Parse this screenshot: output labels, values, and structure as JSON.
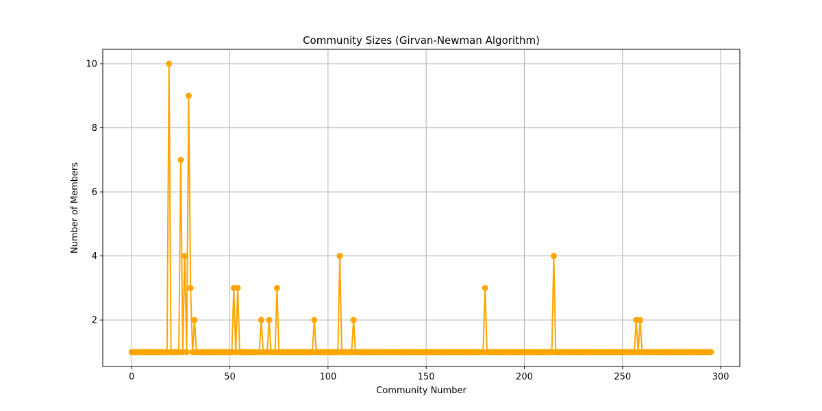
{
  "chart_data": {
    "type": "line",
    "title": "Community Sizes (Girvan-Newman Algorithm)",
    "xlabel": "Community Number",
    "ylabel": "Number of Members",
    "xlim": [
      -14.75,
      309.75
    ],
    "ylim": [
      0.55,
      10.45
    ],
    "x_ticks": [
      0,
      50,
      100,
      150,
      200,
      250,
      300
    ],
    "y_ticks": [
      2,
      4,
      6,
      8,
      10
    ],
    "grid": true,
    "legend": "none",
    "series": [
      {
        "color": "#ffa500",
        "marker": "circle",
        "x_start": 0,
        "x_step": 1,
        "values": [
          1,
          1,
          1,
          1,
          1,
          1,
          1,
          1,
          1,
          1,
          1,
          1,
          1,
          1,
          1,
          1,
          1,
          1,
          1,
          10,
          1,
          1,
          1,
          1,
          1,
          7,
          1,
          4,
          1,
          9,
          3,
          1,
          2,
          1,
          1,
          1,
          1,
          1,
          1,
          1,
          1,
          1,
          1,
          1,
          1,
          1,
          1,
          1,
          1,
          1,
          1,
          1,
          3,
          1,
          3,
          1,
          1,
          1,
          1,
          1,
          1,
          1,
          1,
          1,
          1,
          1,
          2,
          1,
          1,
          1,
          2,
          1,
          1,
          1,
          3,
          1,
          1,
          1,
          1,
          1,
          1,
          1,
          1,
          1,
          1,
          1,
          1,
          1,
          1,
          1,
          1,
          1,
          1,
          2,
          1,
          1,
          1,
          1,
          1,
          1,
          1,
          1,
          1,
          1,
          1,
          1,
          4,
          1,
          1,
          1,
          1,
          1,
          1,
          2,
          1,
          1,
          1,
          1,
          1,
          1,
          1,
          1,
          1,
          1,
          1,
          1,
          1,
          1,
          1,
          1,
          1,
          1,
          1,
          1,
          1,
          1,
          1,
          1,
          1,
          1,
          1,
          1,
          1,
          1,
          1,
          1,
          1,
          1,
          1,
          1,
          1,
          1,
          1,
          1,
          1,
          1,
          1,
          1,
          1,
          1,
          1,
          1,
          1,
          1,
          1,
          1,
          1,
          1,
          1,
          1,
          1,
          1,
          1,
          1,
          1,
          1,
          1,
          1,
          1,
          1,
          3,
          1,
          1,
          1,
          1,
          1,
          1,
          1,
          1,
          1,
          1,
          1,
          1,
          1,
          1,
          1,
          1,
          1,
          1,
          1,
          1,
          1,
          1,
          1,
          1,
          1,
          1,
          1,
          1,
          1,
          1,
          1,
          1,
          1,
          1,
          4,
          1,
          1,
          1,
          1,
          1,
          1,
          1,
          1,
          1,
          1,
          1,
          1,
          1,
          1,
          1,
          1,
          1,
          1,
          1,
          1,
          1,
          1,
          1,
          1,
          1,
          1,
          1,
          1,
          1,
          1,
          1,
          1,
          1,
          1,
          1,
          1,
          1,
          1,
          1,
          1,
          1,
          2,
          1,
          2,
          1,
          1,
          1,
          1,
          1,
          1,
          1,
          1,
          1,
          1,
          1,
          1,
          1,
          1,
          1,
          1,
          1,
          1,
          1,
          1,
          1,
          1,
          1,
          1,
          1,
          1,
          1,
          1,
          1,
          1,
          1,
          1,
          1,
          1,
          1,
          1
        ]
      }
    ]
  }
}
